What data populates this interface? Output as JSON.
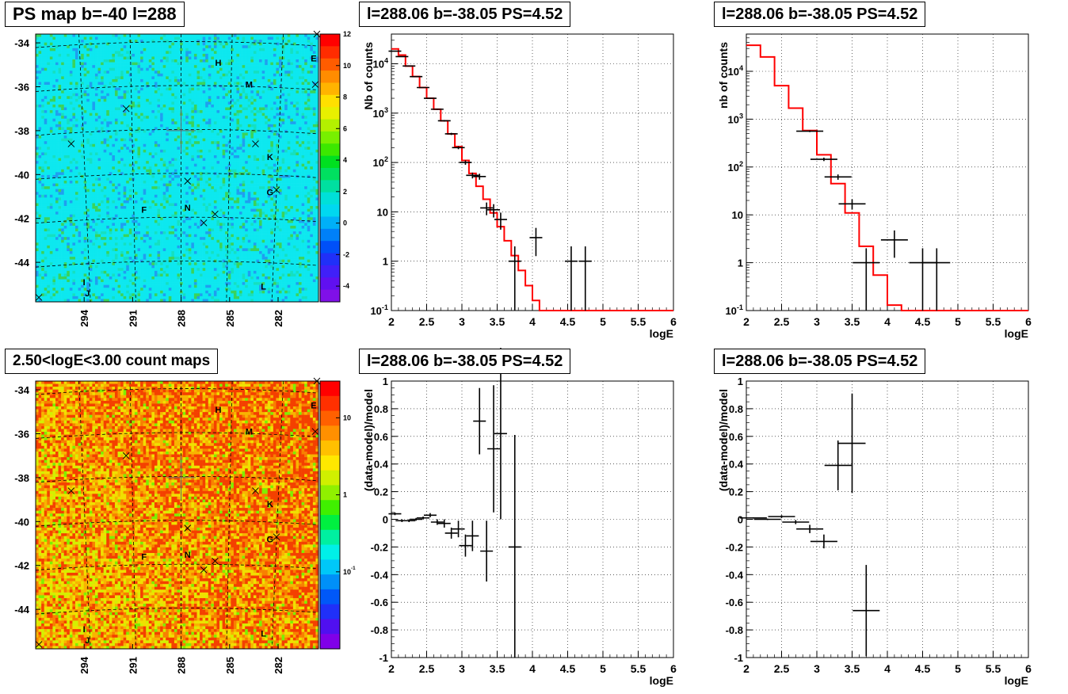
{
  "titles": {
    "map_ps": "PS map b=-40 l=288",
    "map_counts": "2.50<logE<3.00 count maps",
    "spec_left": "l=288.06 b=-38.05 PS=4.52",
    "spec_right": "l=288.06 b=-38.05 PS=4.52",
    "resid_left": "l=288.06 b=-38.05 PS=4.52",
    "resid_right": "l=288.06 b=-38.05 PS=4.52"
  },
  "colors": {
    "model": "#ff0000",
    "data": "#000000",
    "grid": "#000000"
  },
  "chart_data": [
    {
      "id": "map_ps",
      "type": "heatmap",
      "title": "PS map b=-40 l=288",
      "ylabel_ticks": [
        "-34",
        "-36",
        "-38",
        "-40",
        "-42",
        "-44"
      ],
      "y_values": [
        -34,
        -36,
        -38,
        -40,
        -42,
        -44
      ],
      "xlabel_ticks": [
        "294",
        "291",
        "288",
        "285",
        "282"
      ],
      "x_values": [
        294,
        291,
        288,
        285,
        282
      ],
      "xlim": [
        297,
        279.5
      ],
      "ylim": [
        -45.8,
        -33.6
      ],
      "colorbar": {
        "scale": "linear",
        "ticks": [
          "12",
          "10",
          "8",
          "6",
          "4",
          "2",
          "0",
          "-2",
          "-4"
        ],
        "tick_values": [
          12,
          10,
          8,
          6,
          4,
          2,
          0,
          -2,
          -4
        ],
        "range": [
          -5,
          12
        ]
      },
      "dominant_value": 0,
      "sources": [
        {
          "label": "H",
          "l": 285.7,
          "b": -34.9
        },
        {
          "label": "M",
          "l": 283.8,
          "b": -35.9
        },
        {
          "label": "E",
          "l": 279.8,
          "b": -34.7
        },
        {
          "label": "K",
          "l": 282.5,
          "b": -39.2
        },
        {
          "label": "G",
          "l": 282.5,
          "b": -40.8
        },
        {
          "label": "F",
          "l": 290.3,
          "b": -41.6
        },
        {
          "label": "N",
          "l": 287.6,
          "b": -41.5
        },
        {
          "label": "I",
          "l": 294.0,
          "b": -44.9
        },
        {
          "label": "J",
          "l": 293.8,
          "b": -45.4
        },
        {
          "label": "L",
          "l": 282.9,
          "b": -45.1
        }
      ]
    },
    {
      "id": "map_counts",
      "type": "heatmap",
      "title": "2.50<logE<3.00 count maps",
      "ylabel_ticks": [
        "-34",
        "-36",
        "-38",
        "-40",
        "-42",
        "-44"
      ],
      "y_values": [
        -34,
        -36,
        -38,
        -40,
        -42,
        -44
      ],
      "xlabel_ticks": [
        "294",
        "291",
        "288",
        "285",
        "282"
      ],
      "x_values": [
        294,
        291,
        288,
        285,
        282
      ],
      "xlim": [
        297,
        279.5
      ],
      "ylim": [
        -45.8,
        -33.6
      ],
      "colorbar": {
        "scale": "log",
        "ticks": [
          "10",
          "1",
          "10-1"
        ],
        "tick_values": [
          10,
          1,
          0.1
        ],
        "range": [
          0.01,
          30
        ]
      },
      "sources": [
        {
          "label": "H",
          "l": 285.7,
          "b": -34.9
        },
        {
          "label": "M",
          "l": 283.8,
          "b": -35.9
        },
        {
          "label": "E",
          "l": 279.8,
          "b": -34.7
        },
        {
          "label": "K",
          "l": 282.5,
          "b": -39.2
        },
        {
          "label": "G",
          "l": 282.5,
          "b": -40.8
        },
        {
          "label": "F",
          "l": 290.3,
          "b": -41.6
        },
        {
          "label": "N",
          "l": 287.6,
          "b": -41.5
        },
        {
          "label": "I",
          "l": 294.0,
          "b": -44.9
        },
        {
          "label": "J",
          "l": 293.8,
          "b": -45.4
        },
        {
          "label": "L",
          "l": 282.9,
          "b": -45.1
        }
      ]
    },
    {
      "id": "spec_left",
      "type": "line",
      "title": "l=288.06 b=-38.05 PS=4.52",
      "xlabel": "logE",
      "ylabel": "Nb of counts",
      "xlim": [
        2,
        6
      ],
      "ylim": [
        0.1,
        40000
      ],
      "yscale": "log",
      "grid": true,
      "x_ticks": [
        "2",
        "2.5",
        "3",
        "3.5",
        "4",
        "4.5",
        "5",
        "5.5",
        "6"
      ],
      "y_ticks": [
        "10-1",
        "1",
        "10",
        "102",
        "103",
        "104"
      ],
      "model_step": {
        "edges": [
          2,
          2.1,
          2.2,
          2.3,
          2.4,
          2.5,
          2.6,
          2.7,
          2.8,
          2.9,
          3.0,
          3.1,
          3.2,
          3.3,
          3.4,
          3.5,
          3.6,
          3.7,
          3.8,
          3.9,
          4.0,
          4.1,
          4.2,
          6.0
        ],
        "values": [
          20000,
          15000,
          9000,
          5500,
          3300,
          2000,
          1200,
          700,
          380,
          210,
          110,
          60,
          33,
          18,
          9.5,
          5,
          2.6,
          1.3,
          0.65,
          0.32,
          0.16,
          0.1,
          0.1
        ]
      },
      "data": [
        {
          "x": 2.05,
          "y": 18000
        },
        {
          "x": 2.15,
          "y": 14000
        },
        {
          "x": 2.25,
          "y": 9000
        },
        {
          "x": 2.35,
          "y": 5500
        },
        {
          "x": 2.45,
          "y": 3300
        },
        {
          "x": 2.55,
          "y": 2000
        },
        {
          "x": 2.65,
          "y": 1200
        },
        {
          "x": 2.75,
          "y": 700
        },
        {
          "x": 2.85,
          "y": 380
        },
        {
          "x": 2.95,
          "y": 200
        },
        {
          "x": 3.05,
          "y": 100
        },
        {
          "x": 3.15,
          "y": 55
        },
        {
          "x": 3.25,
          "y": 52
        },
        {
          "x": 3.35,
          "y": 12
        },
        {
          "x": 3.45,
          "y": 11
        },
        {
          "x": 3.55,
          "y": 7
        },
        {
          "x": 3.75,
          "y": 1
        },
        {
          "x": 4.05,
          "y": 3
        },
        {
          "x": 4.55,
          "y": 1
        },
        {
          "x": 4.75,
          "y": 1
        }
      ]
    },
    {
      "id": "spec_right",
      "type": "line",
      "title": "l=288.06 b=-38.05 PS=4.52",
      "xlabel": "logE",
      "ylabel": "nb of counts",
      "xlim": [
        2,
        6
      ],
      "ylim": [
        0.1,
        60000
      ],
      "yscale": "log",
      "grid": true,
      "x_ticks": [
        "2",
        "2.5",
        "3",
        "3.5",
        "4",
        "4.5",
        "5",
        "5.5",
        "6"
      ],
      "y_ticks": [
        "10-1",
        "1",
        "10",
        "102",
        "103",
        "104"
      ],
      "model_step": {
        "edges": [
          2,
          2.2,
          2.4,
          2.6,
          2.8,
          3.0,
          3.2,
          3.4,
          3.6,
          3.8,
          4.0,
          4.2,
          6.0
        ],
        "values": [
          35000,
          20000,
          5000,
          1700,
          580,
          180,
          45,
          11,
          2.2,
          0.55,
          0.13,
          0.1
        ]
      },
      "data": [
        {
          "x": 2.9,
          "y": 560
        },
        {
          "x": 3.1,
          "y": 145
        },
        {
          "x": 3.3,
          "y": 62
        },
        {
          "x": 3.5,
          "y": 17
        },
        {
          "x": 3.7,
          "y": 1
        },
        {
          "x": 4.1,
          "y": 3
        },
        {
          "x": 4.5,
          "y": 1
        },
        {
          "x": 4.7,
          "y": 1
        }
      ]
    },
    {
      "id": "resid_left",
      "type": "scatter",
      "title": "l=288.06 b=-38.05 PS=4.52",
      "xlabel": "logE",
      "ylabel": "(data-model)/model",
      "xlim": [
        2,
        6
      ],
      "ylim": [
        -1,
        1
      ],
      "grid": true,
      "x_ticks": [
        "2",
        "2.5",
        "3",
        "3.5",
        "4",
        "4.5",
        "5",
        "5.5",
        "6"
      ],
      "y_ticks": [
        "1",
        "0.8",
        "0.6",
        "0.4",
        "0.2",
        "0",
        "-0.2",
        "-0.4",
        "-0.6",
        "-0.8",
        "-1"
      ],
      "data": [
        {
          "x": 2.05,
          "y": 0.04,
          "err": 0.01
        },
        {
          "x": 2.15,
          "y": -0.01,
          "err": 0.01
        },
        {
          "x": 2.25,
          "y": -0.01,
          "err": 0.01
        },
        {
          "x": 2.35,
          "y": 0.0,
          "err": 0.01
        },
        {
          "x": 2.45,
          "y": 0.01,
          "err": 0.01
        },
        {
          "x": 2.55,
          "y": 0.03,
          "err": 0.015
        },
        {
          "x": 2.65,
          "y": -0.02,
          "err": 0.02
        },
        {
          "x": 2.75,
          "y": -0.03,
          "err": 0.03
        },
        {
          "x": 2.85,
          "y": -0.1,
          "err": 0.04
        },
        {
          "x": 2.95,
          "y": -0.07,
          "err": 0.06
        },
        {
          "x": 3.05,
          "y": -0.19,
          "err": 0.08
        },
        {
          "x": 3.15,
          "y": -0.12,
          "err": 0.11
        },
        {
          "x": 3.25,
          "y": 0.71,
          "err": 0.24
        },
        {
          "x": 3.35,
          "y": -0.23,
          "err": 0.22
        },
        {
          "x": 3.45,
          "y": 0.51,
          "err": 0.46
        },
        {
          "x": 3.55,
          "y": 0.62,
          "err": 0.62
        },
        {
          "x": 3.75,
          "y": -0.2,
          "err": 0.81
        }
      ]
    },
    {
      "id": "resid_right",
      "type": "scatter",
      "title": "l=288.06 b=-38.05 PS=4.52",
      "xlabel": "logE",
      "ylabel": "(data-model)/model",
      "xlim": [
        2,
        6
      ],
      "ylim": [
        -1,
        1
      ],
      "grid": true,
      "x_ticks": [
        "2",
        "2.5",
        "3",
        "3.5",
        "4",
        "4.5",
        "5",
        "5.5",
        "6"
      ],
      "y_ticks": [
        "1",
        "0.8",
        "0.6",
        "0.4",
        "0.2",
        "0",
        "-0.2",
        "-0.4",
        "-0.6",
        "-0.8",
        "-1"
      ],
      "data": [
        {
          "x": 2.1,
          "y": 0.01,
          "err": 0.005
        },
        {
          "x": 2.3,
          "y": 0.0,
          "err": 0.005
        },
        {
          "x": 2.5,
          "y": 0.02,
          "err": 0.01
        },
        {
          "x": 2.7,
          "y": -0.02,
          "err": 0.015
        },
        {
          "x": 2.9,
          "y": -0.07,
          "err": 0.03
        },
        {
          "x": 3.1,
          "y": -0.16,
          "err": 0.05
        },
        {
          "x": 3.3,
          "y": 0.39,
          "err": 0.18
        },
        {
          "x": 3.5,
          "y": 0.55,
          "err": 0.36
        },
        {
          "x": 3.7,
          "y": -0.66,
          "err": 0.33
        }
      ]
    }
  ]
}
